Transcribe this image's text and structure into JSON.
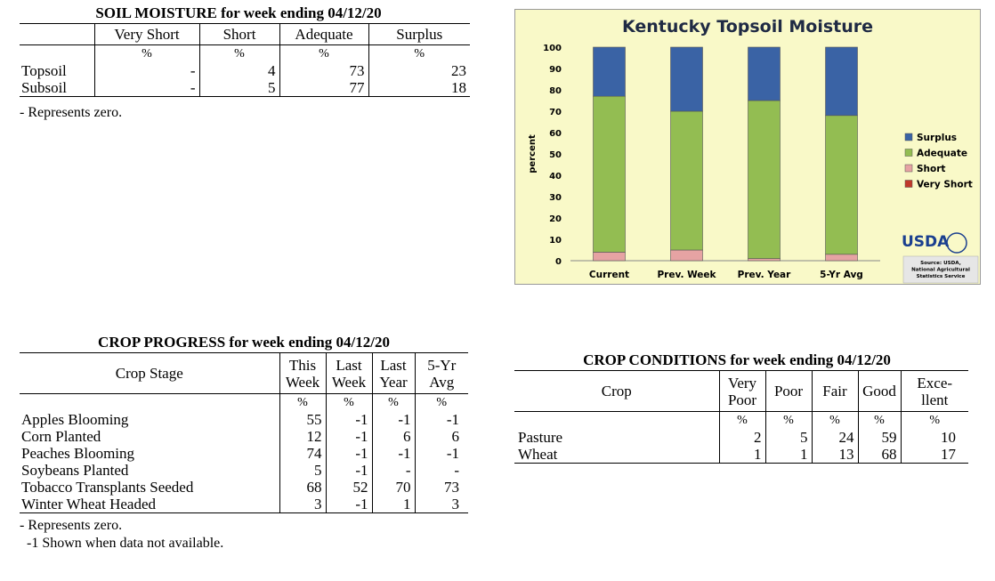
{
  "soil": {
    "title": "SOIL MOISTURE for week ending 04/12/20",
    "headers": [
      "Very Short",
      "Short",
      "Adequate",
      "Surplus"
    ],
    "unit": "%",
    "rows": [
      {
        "label": "Topsoil",
        "values": [
          "-",
          "4",
          "73",
          "23"
        ]
      },
      {
        "label": "Subsoil",
        "values": [
          "-",
          "5",
          "77",
          "18"
        ]
      }
    ],
    "note": "- Represents zero."
  },
  "progress": {
    "title": "CROP PROGRESS for week ending 04/12/20",
    "stage_header": "Crop Stage",
    "headers": [
      [
        "This",
        "Week"
      ],
      [
        "Last",
        "Week"
      ],
      [
        "Last",
        "Year"
      ],
      [
        "5-Yr",
        "Avg"
      ]
    ],
    "unit": "%",
    "rows": [
      {
        "label": "Apples Blooming",
        "values": [
          "55",
          "-1",
          "-1",
          "-1"
        ]
      },
      {
        "label": "Corn Planted",
        "values": [
          "12",
          "-1",
          "6",
          "6"
        ]
      },
      {
        "label": "Peaches Blooming",
        "values": [
          "74",
          "-1",
          "-1",
          "-1"
        ]
      },
      {
        "label": "Soybeans Planted",
        "values": [
          "5",
          "-1",
          "-",
          "-"
        ]
      },
      {
        "label": "Tobacco Transplants Seeded",
        "values": [
          "68",
          "52",
          "70",
          "73"
        ]
      },
      {
        "label": "Winter Wheat Headed",
        "values": [
          "3",
          "-1",
          "1",
          "3"
        ]
      }
    ],
    "note1": "- Represents zero.",
    "note2": "-1 Shown when data not available."
  },
  "conditions": {
    "title": "CROP CONDITIONS for week ending 04/12/20",
    "crop_header": "Crop",
    "headers": [
      [
        "Very",
        "Poor"
      ],
      [
        "Poor"
      ],
      [
        "Fair"
      ],
      [
        "Good"
      ],
      [
        "Exce-",
        "llent"
      ]
    ],
    "unit": "%",
    "rows": [
      {
        "label": "Pasture",
        "values": [
          "2",
          "5",
          "24",
          "59",
          "10"
        ]
      },
      {
        "label": "Wheat",
        "values": [
          "1",
          "1",
          "13",
          "68",
          "17"
        ]
      }
    ]
  },
  "chart_data": {
    "type": "bar",
    "stacked": true,
    "title": "Kentucky Topsoil Moisture",
    "ylabel": "percent",
    "xlabel": "",
    "ylim": [
      0,
      100
    ],
    "yticks": [
      0,
      10,
      20,
      30,
      40,
      50,
      60,
      70,
      80,
      90,
      100
    ],
    "categories": [
      "Current",
      "Prev. Week",
      "Prev. Year",
      "5-Yr Avg"
    ],
    "series": [
      {
        "name": "Very Short",
        "color": "#c0392b",
        "values": [
          0,
          0,
          0,
          0
        ]
      },
      {
        "name": "Short",
        "color": "#e6a3a3",
        "values": [
          4,
          5,
          1,
          3
        ]
      },
      {
        "name": "Adequate",
        "color": "#93bd52",
        "values": [
          73,
          65,
          74,
          65
        ]
      },
      {
        "name": "Surplus",
        "color": "#3a63a5",
        "values": [
          23,
          30,
          25,
          32
        ]
      }
    ],
    "legend_position": "right",
    "legend_order": [
      "Surplus",
      "Adequate",
      "Short",
      "Very Short"
    ],
    "logo_text": "USDA",
    "source_lines": [
      "Source: USDA,",
      "National Agricultural",
      "Statistics Service"
    ]
  }
}
